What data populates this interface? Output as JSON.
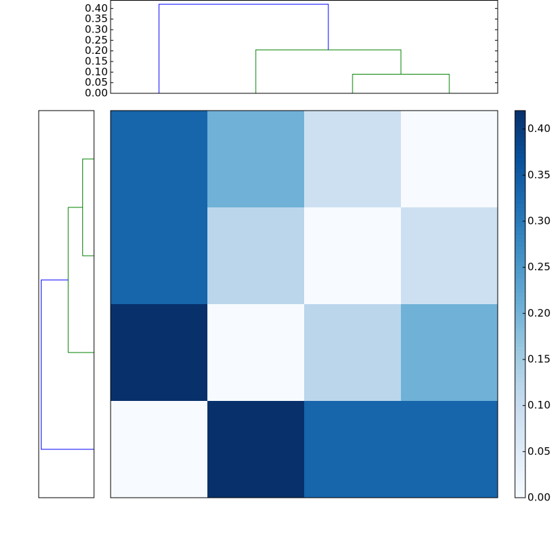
{
  "chart_data": {
    "type": "heatmap",
    "matrix": [
      [
        0.335,
        0.205,
        0.09,
        0
      ],
      [
        0.335,
        0.12,
        0,
        0.09
      ],
      [
        0.42,
        0,
        0.12,
        0.205
      ],
      [
        0,
        0.42,
        0.335,
        0.335
      ]
    ],
    "colormap": [
      "#f7fbff",
      "#deebf7",
      "#c6dbef",
      "#9ecae1",
      "#6baed6",
      "#4292c6",
      "#2171b5",
      "#08519c",
      "#08306b"
    ],
    "clim": [
      0,
      0.42
    ],
    "colorbar_ticks": [
      {
        "value": 0,
        "label": "0.00"
      },
      {
        "value": 0.05,
        "label": "0.05"
      },
      {
        "value": 0.1,
        "label": "0.10"
      },
      {
        "value": 0.15,
        "label": "0.15"
      },
      {
        "value": 0.2,
        "label": "0.20"
      },
      {
        "value": 0.25,
        "label": "0.25"
      },
      {
        "value": 0.3,
        "label": "0.30"
      },
      {
        "value": 0.35,
        "label": "0.35"
      },
      {
        "value": 0.4,
        "label": "0.40"
      }
    ],
    "dendrogram": {
      "leaf_lim": [
        0,
        40
      ],
      "height_lim": [
        0,
        0.44
      ],
      "height_ticks": [
        {
          "value": 0,
          "label": "0.00"
        },
        {
          "value": 0.05,
          "label": "0.05"
        },
        {
          "value": 0.1,
          "label": "0.10"
        },
        {
          "value": 0.15,
          "label": "0.15"
        },
        {
          "value": 0.2,
          "label": "0.20"
        },
        {
          "value": 0.25,
          "label": "0.25"
        },
        {
          "value": 0.3,
          "label": "0.30"
        },
        {
          "value": 0.35,
          "label": "0.35"
        },
        {
          "value": 0.4,
          "label": "0.40"
        }
      ],
      "links": [
        {
          "icoord": [
            25,
            25,
            35,
            35
          ],
          "dcoord": [
            0,
            0.09,
            0.09,
            0
          ],
          "color": "#008000"
        },
        {
          "icoord": [
            15,
            15,
            30,
            30
          ],
          "dcoord": [
            0,
            0.205,
            0.205,
            0.09
          ],
          "color": "#008000"
        },
        {
          "icoord": [
            5,
            5,
            22.5,
            22.5
          ],
          "dcoord": [
            0,
            0.42,
            0.42,
            0.205
          ],
          "color": "#0000ff"
        }
      ]
    }
  }
}
